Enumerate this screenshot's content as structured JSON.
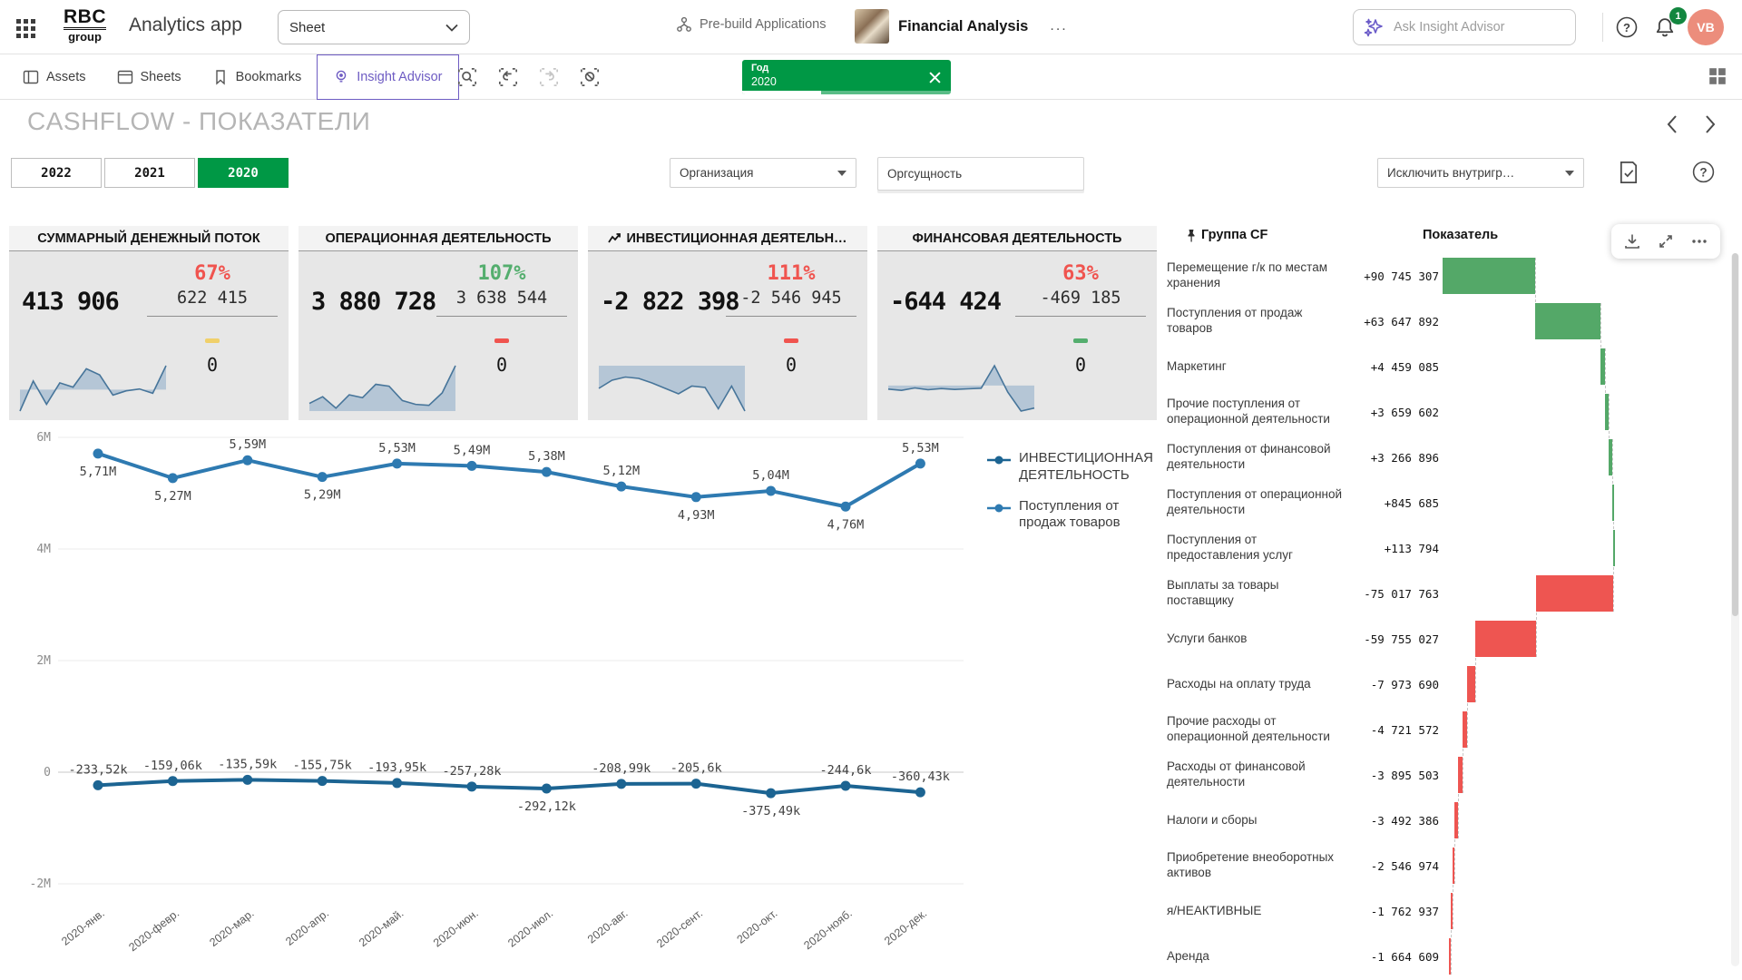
{
  "colors": {
    "green": "#009845",
    "purple": "#6e5cc3",
    "badge": "#13863f",
    "avatar": "#ec8d7c",
    "red_pct": "#f0544f",
    "green_pct": "#54ae6e",
    "dash_yellow": "#f0d06a",
    "spark_fill": "#abbfd2",
    "spark_line": "#47759a",
    "waterfall_green": "#54a868",
    "waterfall_red": "#ee5551",
    "line_blue": "#2e7ab1",
    "line_blue_dark": "#1c6492"
  },
  "header": {
    "logo_line1": "RBC",
    "logo_line2": "group",
    "app_title": "Analytics app",
    "sheet_select_value": "Sheet",
    "prebuild_label": "Pre-build Applications",
    "app_name": "Financial Analysis",
    "more_label": "...",
    "search_placeholder": "Ask Insight Advisor",
    "notification_count": "1",
    "avatar_initials": "VB"
  },
  "toolbar": {
    "tabs": [
      {
        "label": "Assets"
      },
      {
        "label": "Sheets"
      },
      {
        "label": "Bookmarks"
      },
      {
        "label": "Insight Advisor"
      }
    ],
    "selection_chip": {
      "field": "Год",
      "value": "2020"
    }
  },
  "sheet": {
    "title": "CASHFLOW - ПОКАЗАТЕЛИ"
  },
  "filters": {
    "years": [
      {
        "label": "2022",
        "selected": false
      },
      {
        "label": "2021",
        "selected": false
      },
      {
        "label": "2020",
        "selected": true
      }
    ],
    "org_dropdown_label": "Организация",
    "orgentity_label": "Оргсущность",
    "exclude_dropdown_label": "Исключить внутригр…"
  },
  "kpis": [
    {
      "title": "СУММАРНЫЙ ДЕНЕЖНЫЙ ПОТОК",
      "title_icon": false,
      "value": "413 906",
      "pct": "67%",
      "pct_color": "#f0544f",
      "secondary": "622 415",
      "dash_color": "#f0d06a",
      "zero": "0",
      "spark": [
        -70,
        28,
        -48,
        22,
        8,
        68,
        48,
        -18,
        -4,
        2,
        -12,
        78
      ]
    },
    {
      "title": "ОПЕРАЦИОННАЯ ДЕЯТЕЛЬНОСТЬ",
      "title_icon": false,
      "value": "3 880 728",
      "pct": "107%",
      "pct_color": "#54ae6e",
      "secondary": "3 638 544",
      "dash_color": "#f0544f",
      "zero": "0",
      "spark": [
        16,
        30,
        6,
        34,
        28,
        56,
        52,
        22,
        14,
        12,
        38,
        95
      ]
    },
    {
      "title": "ИНВЕСТИЦИОННАЯ ДЕЯТЕЛЬН…",
      "title_icon": true,
      "value": "-2 822 398",
      "pct": "111%",
      "pct_color": "#f0544f",
      "secondary": "-2 546 945",
      "dash_color": "#f0544f",
      "zero": "0",
      "spark": [
        -50,
        -32,
        -25,
        -28,
        -38,
        -50,
        -62,
        -45,
        -48,
        -95,
        -45,
        -100
      ]
    },
    {
      "title": "ФИНАНСОВАЯ ДЕЯТЕЛЬНОСТЬ",
      "title_icon": false,
      "value": "-644 424",
      "pct": "63%",
      "pct_color": "#f0544f",
      "secondary": "-469 185",
      "dash_color": "#54ae6e",
      "zero": "0",
      "spark": [
        -12,
        -16,
        -8,
        -14,
        -10,
        -13,
        -11,
        -9,
        66,
        -22,
        -85,
        -75
      ]
    }
  ],
  "chart_data": [
    {
      "type": "line",
      "title": "",
      "x": [
        "2020-янв.",
        "2020-февр.",
        "2020-мар.",
        "2020-апр.",
        "2020-май.",
        "2020-июн.",
        "2020-июл.",
        "2020-авг.",
        "2020-сент.",
        "2020-окт.",
        "2020-нояб.",
        "2020-дек."
      ],
      "y_ticks": [
        "6M",
        "4M",
        "2M",
        "0",
        "-2M"
      ],
      "ylim": [
        -2000000,
        6000000
      ],
      "grid": true,
      "legend_position": "right",
      "series": [
        {
          "name": "ИНВЕСТИЦИОННАЯ ДЕЯТЕЛЬНОСТЬ",
          "color": "#1c6492",
          "values": [
            -233520,
            -159060,
            -135590,
            -155750,
            -193950,
            -257280,
            -292120,
            -208990,
            -205600,
            -375490,
            -244600,
            -360430
          ],
          "labels": [
            "-233,52k",
            "-159,06k",
            "-135,59k",
            "-155,75k",
            "-193,95k",
            "-257,28k",
            "-292,12k",
            "-208,99k",
            "-205,6k",
            "-375,49k",
            "-244,6k",
            "-360,43k"
          ],
          "label_side": [
            "above",
            "above",
            "above",
            "above",
            "above",
            "above",
            "below",
            "above",
            "above",
            "below",
            "above",
            "above"
          ]
        },
        {
          "name": "Поступления от продаж товаров",
          "color": "#2e7ab1",
          "values": [
            5710000,
            5270000,
            5590000,
            5290000,
            5530000,
            5490000,
            5380000,
            5120000,
            4930000,
            5040000,
            4760000,
            5530000
          ],
          "labels": [
            "5,71M",
            "5,27M",
            "5,59M",
            "5,29M",
            "5,53M",
            "5,49M",
            "5,38M",
            "5,12M",
            "4,93M",
            "5,04M",
            "4,76M",
            "5,53M"
          ],
          "label_side": [
            "below",
            "below",
            "above",
            "below",
            "above",
            "above",
            "above",
            "above",
            "below",
            "above",
            "below",
            "above"
          ]
        }
      ]
    },
    {
      "type": "bar",
      "subtype": "horizontal-waterfall",
      "col1_header": "Группа CF",
      "col2_header": "Показатель",
      "positive_color": "#54a868",
      "negative_color": "#ee5551",
      "rows": [
        {
          "label": "Перемещение г/к по местам хранения",
          "value_label": "+90 745 307",
          "value": 90745307
        },
        {
          "label": "Поступления от продаж товаров",
          "value_label": "+63 647 892",
          "value": 63647892
        },
        {
          "label": "Маркетинг",
          "value_label": "+4 459 085",
          "value": 4459085
        },
        {
          "label": "Прочие поступления от операционной деятельности",
          "value_label": "+3 659 602",
          "value": 3659602
        },
        {
          "label": "Поступления от финансовой деятельности",
          "value_label": "+3 266 896",
          "value": 3266896
        },
        {
          "label": "Поступления от операционной деятельности",
          "value_label": "+845 685",
          "value": 845685
        },
        {
          "label": "Поступления от предоставления услуг",
          "value_label": "+113 794",
          "value": 113794
        },
        {
          "label": "Выплаты за товары поставщику",
          "value_label": "-75 017 763",
          "value": -75017763
        },
        {
          "label": "Услуги банков",
          "value_label": "-59 755 027",
          "value": -59755027
        },
        {
          "label": "Расходы на оплату труда",
          "value_label": "-7 973 690",
          "value": -7973690
        },
        {
          "label": "Прочие расходы от операционной деятельности",
          "value_label": "-4 721 572",
          "value": -4721572
        },
        {
          "label": "Расходы от финансовой деятельности",
          "value_label": "-3 895 503",
          "value": -3895503
        },
        {
          "label": "Налоги и сборы",
          "value_label": "-3 492 386",
          "value": -3492386
        },
        {
          "label": "Приобретение внеоборотных активов",
          "value_label": "-2 546 974",
          "value": -2546974
        },
        {
          "label": "я/НЕАКТИВНЫЕ",
          "value_label": "-1 762 937",
          "value": -1762937
        },
        {
          "label": "Аренда",
          "value_label": "-1 664 609",
          "value": -1664609
        }
      ]
    }
  ]
}
